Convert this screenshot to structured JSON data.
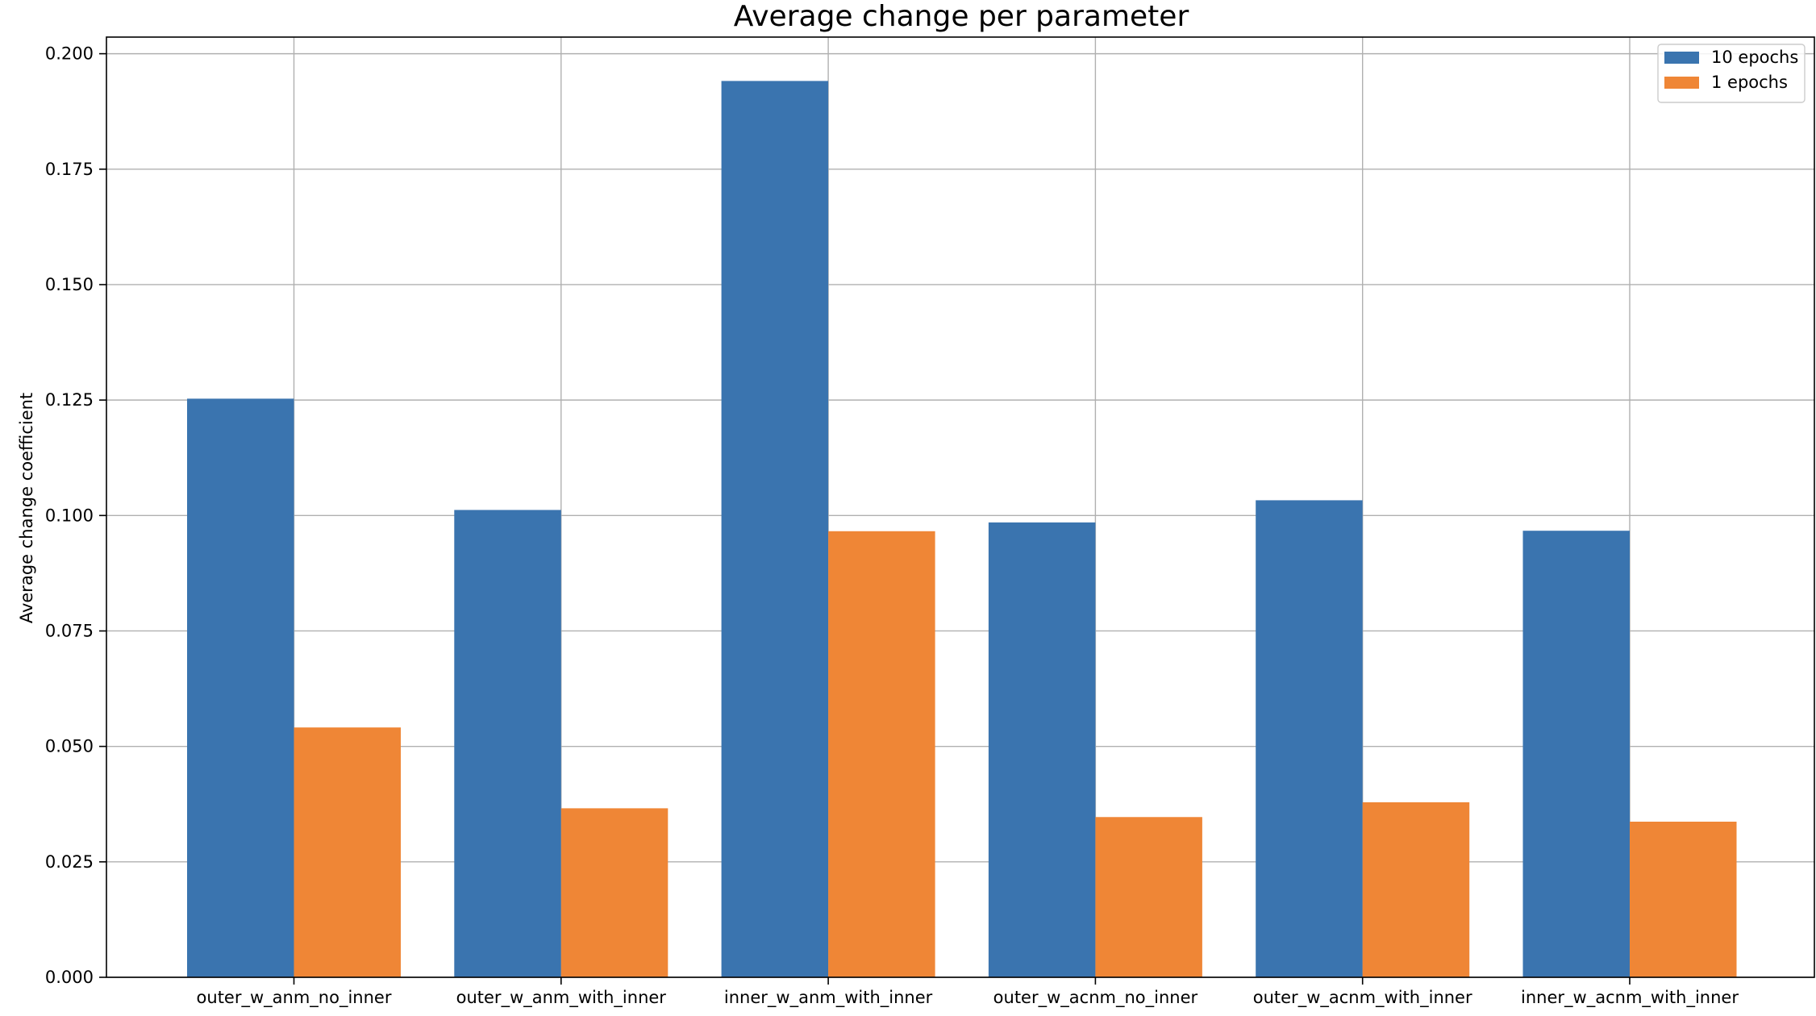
{
  "chart_data": {
    "type": "bar",
    "title": "Average change per parameter",
    "xlabel": "",
    "ylabel": "Average change coefficient",
    "categories": [
      "outer_w_anm_no_inner",
      "outer_w_anm_with_inner",
      "inner_w_anm_with_inner",
      "outer_w_acnm_no_inner",
      "outer_w_acnm_with_inner",
      "inner_w_acnm_with_inner"
    ],
    "series": [
      {
        "name": "10 epochs",
        "color": "#3a74af",
        "values": [
          0.1253,
          0.1012,
          0.1941,
          0.0985,
          0.1033,
          0.0967
        ]
      },
      {
        "name": "1 epochs",
        "color": "#ef8636",
        "values": [
          0.0541,
          0.0366,
          0.0966,
          0.0347,
          0.0379,
          0.0337
        ]
      }
    ],
    "ylim": [
      0,
      0.2036
    ],
    "yticks": [
      "0.000",
      "0.025",
      "0.050",
      "0.075",
      "0.100",
      "0.125",
      "0.150",
      "0.175",
      "0.200"
    ],
    "grid": true,
    "legend_position": "top-right"
  }
}
